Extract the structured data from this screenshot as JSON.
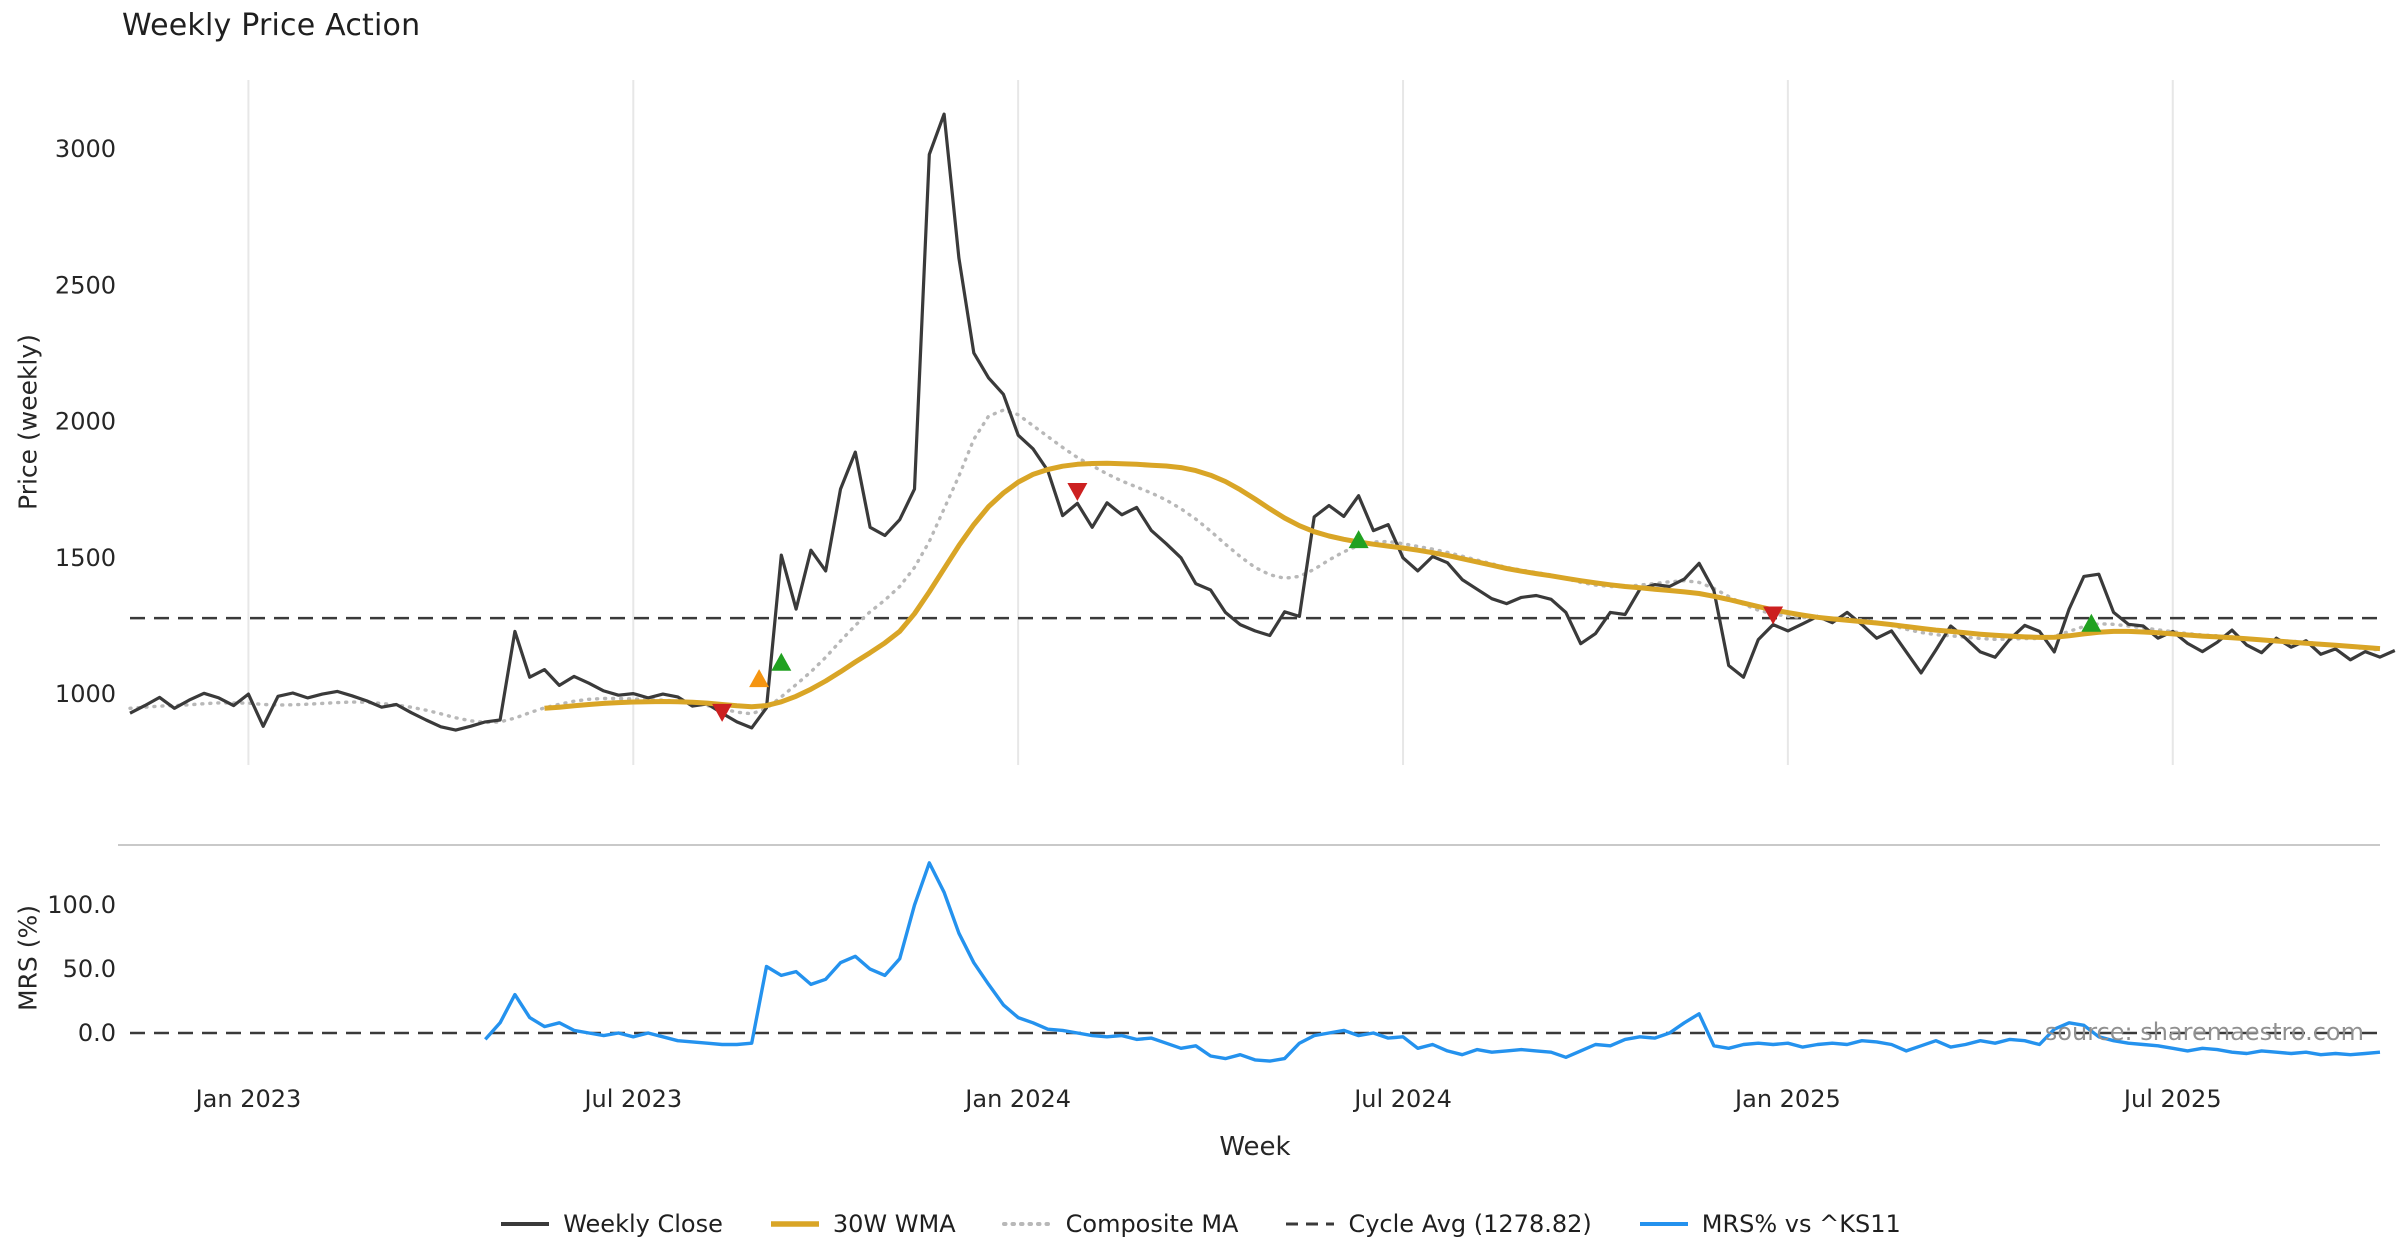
{
  "title": "Weekly Price Action",
  "xlabel": "Week",
  "watermark": "source: sharemaestro.com",
  "legend": {
    "items": [
      {
        "label": "Weekly Close",
        "color": "#3a3a3a",
        "style": "solid",
        "width": 4
      },
      {
        "label": "30W WMA",
        "color": "#d9a526",
        "style": "solid",
        "width": 5.5
      },
      {
        "label": "Composite MA",
        "color": "#b8b8b8",
        "style": "dotted",
        "width": 4
      },
      {
        "label": "Cycle Avg (1278.82)",
        "color": "#3a3a3a",
        "style": "dashed",
        "width": 3
      },
      {
        "label": "MRS% vs ^KS11",
        "color": "#2492ee",
        "style": "solid",
        "width": 4
      }
    ]
  },
  "chart_data": {
    "type": "line",
    "title": "Weekly Price Action",
    "x_axis": {
      "label": "Week",
      "unit": "week-index",
      "total_weeks": 152,
      "ticks": [
        {
          "week": 8,
          "label": "Jan 2023"
        },
        {
          "week": 34,
          "label": "Jul 2023"
        },
        {
          "week": 60,
          "label": "Jan 2024"
        },
        {
          "week": 86,
          "label": "Jul 2024"
        },
        {
          "week": 112,
          "label": "Jan 2025"
        },
        {
          "week": 138,
          "label": "Jul 2025"
        }
      ]
    },
    "panels": [
      {
        "id": "price",
        "ylabel": "Price (weekly)",
        "ylim": [
          740,
          3253
        ],
        "grid_vertical": true,
        "yticks": [
          {
            "value": 1000,
            "label": "1000"
          },
          {
            "value": 1500,
            "label": "1500"
          },
          {
            "value": 2000,
            "label": "2000"
          },
          {
            "value": 2500,
            "label": "2500"
          },
          {
            "value": 3000,
            "label": "3000"
          }
        ],
        "hlines": [
          {
            "name": "cycle-avg-line",
            "label": "Cycle Avg (1278.82)",
            "value": 1278.82,
            "style": "dashed",
            "color": "#3a3a3a"
          }
        ],
        "series": [
          {
            "name": "Composite MA",
            "color": "#b8b8b8",
            "style": "dotted",
            "width": 3.4,
            "start_week": 0,
            "values": [
              948,
              952,
              956,
              958,
              961,
              965,
              968,
              968,
              967,
              962,
              960,
              961,
              963,
              966,
              969,
              971,
              970,
              966,
              960,
              952,
              941,
              928,
              913,
              902,
              896,
              898,
              912,
              932,
              950,
              963,
              974,
              981,
              984,
              984,
              982,
              980,
              978,
              974,
              968,
              958,
              946,
              934,
              928,
              948,
              990,
              1035,
              1082,
              1135,
              1195,
              1252,
              1302,
              1345,
              1395,
              1465,
              1560,
              1680,
              1800,
              1935,
              2020,
              2042,
              2025,
              1985,
              1945,
              1905,
              1868,
              1838,
              1808,
              1782,
              1760,
              1738,
              1712,
              1680,
              1642,
              1598,
              1550,
              1505,
              1465,
              1438,
              1425,
              1432,
              1458,
              1492,
              1522,
              1545,
              1558,
              1560,
              1552,
              1542,
              1532,
              1520,
              1506,
              1492,
              1478,
              1465,
              1455,
              1446,
              1437,
              1424,
              1410,
              1400,
              1395,
              1395,
              1400,
              1406,
              1412,
              1416,
              1410,
              1388,
              1358,
              1330,
              1308,
              1294,
              1286,
              1281,
              1279,
              1279,
              1277,
              1272,
              1264,
              1252,
              1238,
              1226,
              1218,
              1214,
              1209,
              1204,
              1201,
              1202,
              1204,
              1204,
              1212,
              1230,
              1248,
              1258,
              1256,
              1250,
              1243,
              1236,
              1229,
              1222,
              1217,
              1214,
              1210,
              1205,
              1200,
              1197,
              1194,
              1190,
              1185,
              1179,
              1173,
              1167,
              1162
            ]
          },
          {
            "name": "Weekly Close",
            "color": "#3a3a3a",
            "style": "solid",
            "width": 3.2,
            "start_week": 0,
            "values": [
              930,
              958,
              988,
              948,
              978,
              1003,
              986,
              958,
              1000,
              882,
              992,
              1004,
              986,
              1000,
              1010,
              994,
              975,
              952,
              962,
              932,
              905,
              880,
              868,
              882,
              898,
              905,
              1230,
              1062,
              1090,
              1032,
              1065,
              1040,
              1012,
              996,
              1002,
              986,
              1000,
              990,
              956,
              964,
              930,
              898,
              876,
              950,
              1510,
              1312,
              1528,
              1452,
              1752,
              1888,
              1612,
              1582,
              1640,
              1752,
              2980,
              3128,
              2600,
              2252,
              2160,
              2100,
              1950,
              1900,
              1820,
              1655,
              1700,
              1612,
              1702,
              1658,
              1685,
              1600,
              1552,
              1500,
              1405,
              1382,
              1300,
              1255,
              1232,
              1215,
              1302,
              1285,
              1650,
              1692,
              1652,
              1728,
              1600,
              1622,
              1500,
              1452,
              1505,
              1482,
              1420,
              1385,
              1350,
              1332,
              1355,
              1362,
              1348,
              1300,
              1185,
              1222,
              1300,
              1292,
              1385,
              1402,
              1395,
              1422,
              1480,
              1380,
              1105,
              1062,
              1200,
              1255,
              1232,
              1258,
              1285,
              1262,
              1300,
              1255,
              1205,
              1232,
              1155,
              1078,
              1162,
              1250,
              1205,
              1155,
              1135,
              1202,
              1252,
              1230,
              1155,
              1312,
              1432,
              1440,
              1300,
              1256,
              1250,
              1205,
              1230,
              1186,
              1156,
              1190,
              1235,
              1180,
              1152,
              1205,
              1172,
              1196,
              1146,
              1166,
              1126,
              1156,
              1136,
              1160
            ]
          },
          {
            "name": "30W WMA",
            "color": "#d9a526",
            "style": "solid",
            "width": 5,
            "start_week": 28,
            "values": [
              948,
              952,
              957,
              962,
              966,
              969,
              971,
              972,
              973,
              972,
              970,
              967,
              962,
              957,
              954,
              958,
              972,
              992,
              1018,
              1048,
              1082,
              1118,
              1152,
              1188,
              1230,
              1295,
              1375,
              1460,
              1545,
              1622,
              1688,
              1738,
              1778,
              1806,
              1824,
              1836,
              1843,
              1846,
              1847,
              1845,
              1843,
              1840,
              1837,
              1831,
              1820,
              1803,
              1780,
              1750,
              1716,
              1680,
              1646,
              1618,
              1596,
              1580,
              1568,
              1558,
              1550,
              1543,
              1536,
              1528,
              1519,
              1509,
              1497,
              1485,
              1473,
              1461,
              1451,
              1442,
              1434,
              1425,
              1416,
              1408,
              1401,
              1395,
              1390,
              1385,
              1380,
              1375,
              1369,
              1359,
              1347,
              1334,
              1321,
              1309,
              1299,
              1290,
              1282,
              1276,
              1271,
              1266,
              1261,
              1255,
              1248,
              1241,
              1235,
              1230,
              1225,
              1220,
              1216,
              1213,
              1210,
              1208,
              1209,
              1214,
              1221,
              1227,
              1230,
              1230,
              1228,
              1225,
              1221,
              1217,
              1213,
              1210,
              1207,
              1203,
              1199,
              1195,
              1191,
              1187,
              1183,
              1179,
              1175,
              1171,
              1167
            ]
          }
        ],
        "signals": [
          {
            "kind": "sell",
            "shape": "down",
            "color": "#cc2020",
            "week": 40,
            "value": 935
          },
          {
            "kind": "buy-early",
            "shape": "up",
            "color": "#f59511",
            "week": 42.5,
            "value": 1055
          },
          {
            "kind": "buy",
            "shape": "up",
            "color": "#21a121",
            "week": 44,
            "value": 1115
          },
          {
            "kind": "sell",
            "shape": "down",
            "color": "#cc2020",
            "week": 64,
            "value": 1745
          },
          {
            "kind": "buy",
            "shape": "up",
            "color": "#21a121",
            "week": 83,
            "value": 1565
          },
          {
            "kind": "sell",
            "shape": "down",
            "color": "#cc2020",
            "week": 111,
            "value": 1292
          },
          {
            "kind": "buy",
            "shape": "up",
            "color": "#21a121",
            "week": 132.5,
            "value": 1258
          }
        ]
      },
      {
        "id": "mrs",
        "ylabel": "MRS (%)",
        "ylim": [
          -30.5,
          147
        ],
        "top_border": true,
        "yticks": [
          {
            "value": 0,
            "label": "0.0"
          },
          {
            "value": 50,
            "label": "50.0"
          },
          {
            "value": 100,
            "label": "100.0"
          }
        ],
        "hlines": [
          {
            "name": "zero-line",
            "value": 0,
            "style": "dashed",
            "color": "#3a3a3a"
          }
        ],
        "series": [
          {
            "name": "MRS% vs ^KS11",
            "color": "#2492ee",
            "style": "solid",
            "width": 3.4,
            "start_week": 24,
            "values": [
              -5,
              8,
              30,
              12,
              5,
              8,
              2,
              0,
              -2,
              0,
              -3,
              0,
              -3,
              -6,
              -7,
              -8,
              -9,
              -9,
              -8,
              52,
              45,
              48,
              38,
              42,
              55,
              60,
              50,
              45,
              58,
              100,
              133,
              110,
              78,
              55,
              38,
              22,
              12,
              8,
              3,
              2,
              0,
              -2,
              -3,
              -2,
              -5,
              -4,
              -8,
              -12,
              -10,
              -18,
              -20,
              -17,
              -21,
              -22,
              -20,
              -8,
              -2,
              0,
              2,
              -2,
              0,
              -4,
              -3,
              -12,
              -9,
              -14,
              -17,
              -13,
              -15,
              -14,
              -13,
              -14,
              -15,
              -19,
              -14,
              -9,
              -10,
              -5,
              -3,
              -4,
              0,
              8,
              15,
              -10,
              -12,
              -9,
              -8,
              -9,
              -8,
              -11,
              -9,
              -8,
              -9,
              -6,
              -7,
              -9,
              -14,
              -10,
              -6,
              -11,
              -9,
              -6,
              -8,
              -5,
              -6,
              -9,
              3,
              8,
              6,
              -3,
              -6,
              -8,
              -9,
              -10,
              -12,
              -14,
              -12,
              -13,
              -15,
              -16,
              -14,
              -15,
              -16,
              -15,
              -17,
              -16,
              -17,
              -16,
              -15
            ]
          }
        ]
      }
    ]
  }
}
